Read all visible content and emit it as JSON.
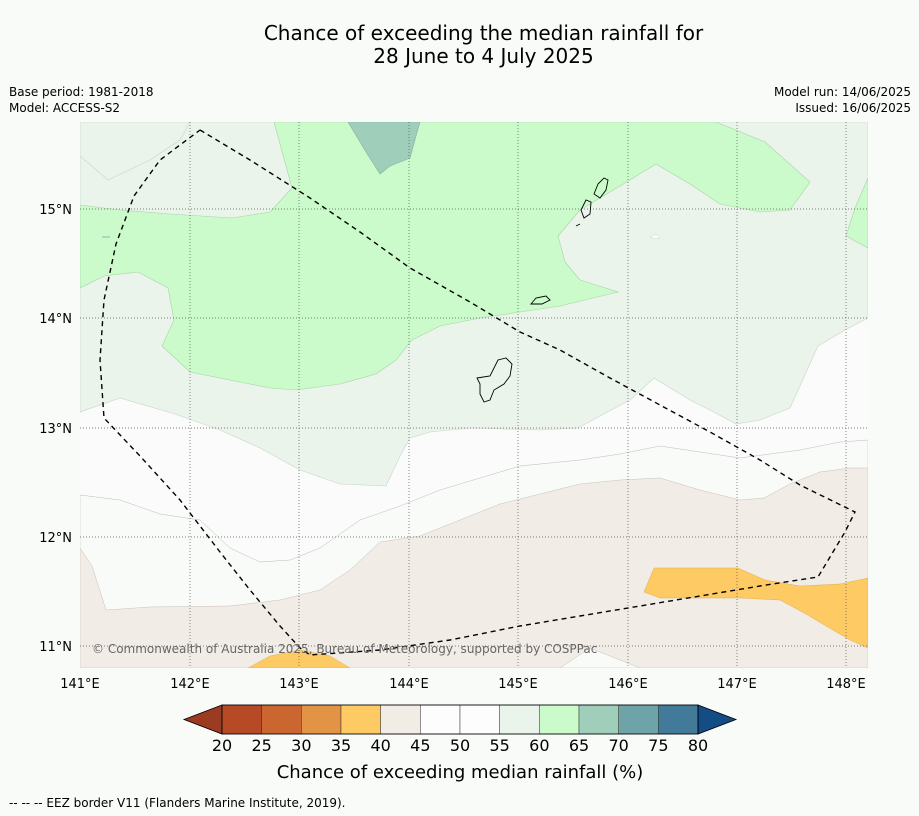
{
  "title_line1": "Chance of exceeding the median rainfall for",
  "title_line2": "28 June to 4 July 2025",
  "base_period": "Base period: 1981-2018",
  "model": "Model: ACCESS-S2",
  "model_run": "Model run: 14/06/2025",
  "issued": "Issued: 16/06/2025",
  "copyright": "© Commonwealth of Australia 2025, Bureau of Meteorology, supported by COSPPac",
  "lat_labels": [
    "15°N",
    "14°N",
    "13°N",
    "12°N",
    "11°N"
  ],
  "lon_labels": [
    "141°E",
    "142°E",
    "143°E",
    "144°E",
    "145°E",
    "146°E",
    "147°E",
    "148°E"
  ],
  "colorbar": {
    "title": "Chance of exceeding median rainfall (%)",
    "ticks": [
      "20",
      "25",
      "30",
      "35",
      "40",
      "45",
      "50",
      "55",
      "60",
      "65",
      "70",
      "75",
      "80"
    ],
    "colors": [
      "#9b3b22",
      "#b64a26",
      "#cc6631",
      "#e29343",
      "#fdca64",
      "#f1ece6",
      "#fdfdfd",
      "#fdfdfd",
      "#eaf4ea",
      "#cbfbcb",
      "#9fcfbb",
      "#6ea4a8",
      "#427b99",
      "#144d85"
    ]
  },
  "footer": "--  --  -- EEZ border V11 (Flanders Marine Institute, 2019)."
}
